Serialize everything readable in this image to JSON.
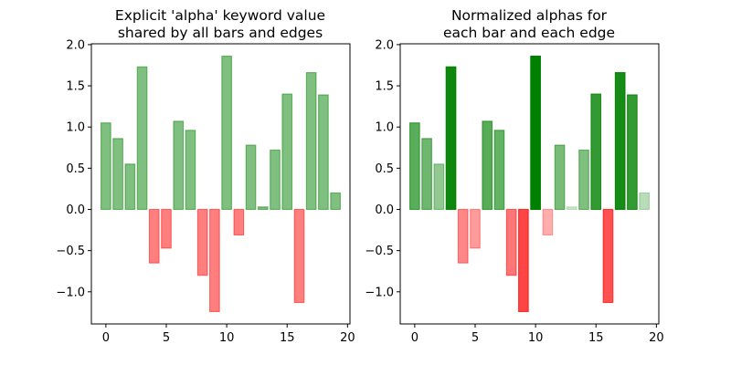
{
  "chart_data": [
    {
      "type": "bar",
      "title_lines": [
        "Explicit 'alpha' keyword value",
        "shared by all bars and edges"
      ],
      "x": [
        0,
        1,
        2,
        3,
        4,
        5,
        6,
        7,
        8,
        9,
        10,
        11,
        12,
        13,
        14,
        15,
        16,
        17,
        18,
        19
      ],
      "values": [
        1.05,
        0.86,
        0.55,
        1.73,
        -0.65,
        -0.47,
        1.07,
        0.96,
        -0.8,
        -1.24,
        1.86,
        -0.31,
        0.78,
        0.03,
        0.72,
        1.4,
        -1.13,
        1.66,
        1.39,
        0.2
      ],
      "xticks": [
        0,
        5,
        10,
        15,
        20
      ],
      "yticks": [
        -1.0,
        -0.5,
        0.0,
        0.5,
        1.0,
        1.5,
        2.0
      ],
      "xtick_labels": [
        "0",
        "5",
        "10",
        "15",
        "20"
      ],
      "ytick_labels": [
        "−1.0",
        "−0.5",
        "0.0",
        "0.5",
        "1.0",
        "1.5",
        "2.0"
      ],
      "xlim": [
        -1.2,
        20.2
      ],
      "ylim": [
        -1.39,
        2.01
      ],
      "xlabel": "",
      "ylabel": "",
      "alpha_mode": "shared",
      "alpha": 0.5
    },
    {
      "type": "bar",
      "title_lines": [
        "Normalized alphas for",
        "each bar and each edge"
      ],
      "x": [
        0,
        1,
        2,
        3,
        4,
        5,
        6,
        7,
        8,
        9,
        10,
        11,
        12,
        13,
        14,
        15,
        16,
        17,
        18,
        19
      ],
      "values": [
        1.05,
        0.86,
        0.55,
        1.73,
        -0.65,
        -0.47,
        1.07,
        0.96,
        -0.8,
        -1.24,
        1.86,
        -0.31,
        0.78,
        0.03,
        0.72,
        1.4,
        -1.13,
        1.66,
        1.39,
        0.2
      ],
      "xticks": [
        0,
        5,
        10,
        15,
        20
      ],
      "yticks": [
        -1.0,
        -0.5,
        0.0,
        0.5,
        1.0,
        1.5,
        2.0
      ],
      "xtick_labels": [
        "0",
        "5",
        "10",
        "15",
        "20"
      ],
      "ytick_labels": [
        "−1.0",
        "−0.5",
        "0.0",
        "0.5",
        "1.0",
        "1.5",
        "2.0"
      ],
      "xlim": [
        -1.2,
        20.2
      ],
      "ylim": [
        -1.39,
        2.01
      ],
      "xlabel": "",
      "ylabel": "",
      "alpha_mode": "normalized",
      "alpha_range": [
        0.2,
        1.0
      ]
    }
  ],
  "colors": {
    "positive": "#008000",
    "negative": "#ff0000",
    "axis": "#000000",
    "background": "#ffffff"
  }
}
